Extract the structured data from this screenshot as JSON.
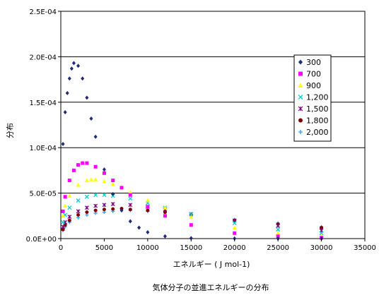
{
  "chart_data": {
    "type": "scatter",
    "title": "",
    "caption": "気体分子の並進エネルギーの分布",
    "xlabel": "エネルギー  ( J mol-1)",
    "ylabel": "分布",
    "xlim": [
      0,
      35000
    ],
    "ylim": [
      0,
      0.00025
    ],
    "x_ticks": [
      "0",
      "5000",
      "10000",
      "15000",
      "20000",
      "25000",
      "30000",
      "35000"
    ],
    "y_ticks": [
      "0.0E+00",
      "5.0E-05",
      "1.0E-04",
      "1.5E-04",
      "2.0E-04",
      "2.5E-04"
    ],
    "grid": "horizontal",
    "legend_position": "right",
    "series": [
      {
        "name": "300",
        "marker": "diamond",
        "color": "#1f2a7a",
        "x": [
          250,
          500,
          750,
          1000,
          1250,
          1500,
          2000,
          2500,
          3000,
          3500,
          4000,
          5000,
          6000,
          7000,
          8000,
          9000,
          10000,
          12000,
          15000,
          20000,
          25000,
          30000
        ],
        "y": [
          0.000104,
          0.000139,
          0.00016,
          0.000176,
          0.000187,
          0.000193,
          0.00019,
          0.000176,
          0.000155,
          0.000132,
          0.000112,
          7.6e-05,
          4.9e-05,
          3.1e-05,
          1.9e-05,
          1.2e-05,
          7e-06,
          2.5e-06,
          5e-07,
          5e-08,
          1e-08,
          0.0
        ]
      },
      {
        "name": "700",
        "marker": "square",
        "color": "#ff00ff",
        "x": [
          250,
          500,
          1000,
          1500,
          2000,
          2500,
          3000,
          4000,
          5000,
          6000,
          7000,
          8000,
          10000,
          12000,
          15000,
          20000,
          25000,
          30000
        ],
        "y": [
          3e-05,
          4.6e-05,
          6.4e-05,
          7.5e-05,
          8.1e-05,
          8.3e-05,
          8.3e-05,
          7.9e-05,
          7.2e-05,
          6.4e-05,
          5.6e-05,
          4.8e-05,
          3.5e-05,
          2.5e-05,
          1.5e-05,
          6e-06,
          2.5e-06,
          1e-06
        ]
      },
      {
        "name": "900",
        "marker": "triangle",
        "color": "#ffff00",
        "x": [
          250,
          500,
          1000,
          2000,
          3000,
          3500,
          4000,
          5000,
          6000,
          7000,
          8000,
          10000,
          12000,
          15000,
          20000,
          25000,
          30000
        ],
        "y": [
          2.5e-05,
          3.6e-05,
          4.7e-05,
          5.9e-05,
          6.4e-05,
          6.5e-05,
          6.5e-05,
          6.3e-05,
          6e-05,
          5.6e-05,
          5.1e-05,
          4.2e-05,
          3.4e-05,
          2.4e-05,
          1.2e-05,
          6e-06,
          3e-06
        ]
      },
      {
        "name": "1,200",
        "marker": "x",
        "color": "#00d0d0",
        "x": [
          250,
          500,
          1000,
          2000,
          3000,
          4000,
          5000,
          6000,
          8000,
          10000,
          12000,
          15000,
          20000,
          25000,
          30000
        ],
        "y": [
          1.8e-05,
          2.6e-05,
          3.4e-05,
          4.2e-05,
          4.6e-05,
          4.8e-05,
          4.8e-05,
          4.7e-05,
          4.4e-05,
          3.9e-05,
          3.4e-05,
          2.7e-05,
          1.7e-05,
          1e-05,
          6e-06
        ]
      },
      {
        "name": "1,500",
        "marker": "star",
        "color": "#800080",
        "x": [
          250,
          500,
          1000,
          2000,
          3000,
          4000,
          5000,
          6000,
          8000,
          10000,
          12000,
          15000,
          20000,
          25000,
          30000
        ],
        "y": [
          1.3e-05,
          1.8e-05,
          2.4e-05,
          3e-05,
          3.4e-05,
          3.6e-05,
          3.7e-05,
          3.8e-05,
          3.7e-05,
          3.5e-05,
          3.2e-05,
          2.7e-05,
          2e-05,
          1.4e-05,
          9e-06
        ]
      },
      {
        "name": "1,800",
        "marker": "circle",
        "color": "#800000",
        "x": [
          250,
          500,
          1000,
          2000,
          3000,
          4000,
          5000,
          6000,
          7000,
          8000,
          10000,
          12000,
          15000,
          20000,
          25000,
          30000
        ],
        "y": [
          1e-05,
          1.5e-05,
          2e-05,
          2.6e-05,
          2.9e-05,
          3.1e-05,
          3.2e-05,
          3.25e-05,
          3.3e-05,
          3.2e-05,
          3.1e-05,
          2.9e-05,
          2.6e-05,
          2e-05,
          1.6e-05,
          1.2e-05
        ]
      },
      {
        "name": "2,000",
        "marker": "plus",
        "color": "#3399ff",
        "x": [
          250,
          500,
          1000,
          2000,
          3000,
          4000,
          5000,
          6000,
          8000,
          10000,
          12000,
          15000,
          20000,
          25000,
          30000
        ],
        "y": [
          9e-06,
          1.3e-05,
          1.8e-05,
          2.3e-05,
          2.6e-05,
          2.8e-05,
          2.9e-05,
          3e-05,
          3.1e-05,
          3e-05,
          2.9e-05,
          2.6e-05,
          2.1e-05,
          1.7e-05,
          1.3e-05
        ]
      }
    ]
  }
}
